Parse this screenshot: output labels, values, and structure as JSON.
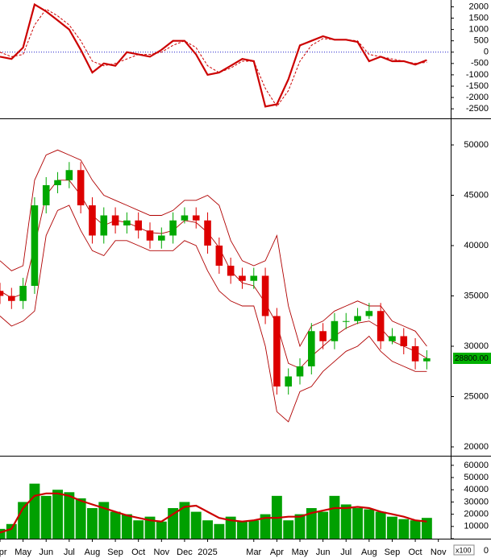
{
  "chart_data": [
    {
      "type": "line",
      "x": [
        0,
        0.5,
        1,
        1.5,
        2,
        2.5,
        3,
        3.5,
        4,
        4.5,
        5,
        5.5,
        6,
        6.5,
        7,
        7.5,
        8,
        8.5,
        9,
        9.5,
        10,
        10.5,
        11,
        11.5,
        12,
        12.5,
        13,
        13.5,
        14,
        14.5,
        15,
        15.5,
        16,
        16.5,
        17,
        17.5,
        18,
        18.5
      ],
      "xlim": [
        0,
        19.5
      ],
      "ylim": [
        -2850,
        2300
      ],
      "yticks": [
        2000,
        1500,
        1000,
        500,
        0,
        -500,
        -1000,
        -1500,
        -2000,
        -2500
      ],
      "hlines": [
        {
          "value": 0,
          "color": "#1a1acc",
          "style": "dotted"
        }
      ],
      "series": [
        {
          "color": "#cc0000",
          "style": "solid",
          "values": [
            -200,
            -300,
            200,
            2100,
            1800,
            1400,
            1000,
            100,
            -900,
            -500,
            -600,
            0,
            -100,
            -200,
            100,
            500,
            500,
            -100,
            -1000,
            -900,
            -600,
            -300,
            -400,
            -2400,
            -2300,
            -1200,
            300,
            500,
            700,
            550,
            550,
            450,
            -400,
            -200,
            -400,
            -400,
            -550,
            -350
          ]
        },
        {
          "color": "#cc0000",
          "style": "dashed",
          "values": [
            0,
            -200,
            -100,
            1200,
            1900,
            1600,
            1200,
            500,
            -400,
            -600,
            -500,
            -300,
            -100,
            -100,
            0,
            300,
            500,
            200,
            -600,
            -900,
            -700,
            -400,
            -400,
            -1600,
            -2400,
            -1700,
            -400,
            300,
            600,
            550,
            550,
            500,
            -100,
            -200,
            -300,
            -400,
            -500,
            -450
          ]
        }
      ]
    },
    {
      "type": "candlestick",
      "x": [
        0,
        0.5,
        1,
        1.5,
        2,
        2.5,
        3,
        3.5,
        4,
        4.5,
        5,
        5.5,
        6,
        6.5,
        7,
        7.5,
        8,
        8.5,
        9,
        9.5,
        10,
        10.5,
        11,
        11.5,
        12,
        12.5,
        13,
        13.5,
        14,
        14.5,
        15,
        15.5,
        16,
        16.5,
        17,
        17.5,
        18,
        18.5
      ],
      "xlim": [
        0,
        19.5
      ],
      "ylim": [
        19200,
        52400
      ],
      "yticks": [
        50000,
        45000,
        40000,
        35000,
        30000,
        25000,
        20000
      ],
      "up_color": "#00a800",
      "down_color": "#dd0000",
      "open": [
        35500,
        35000,
        34500,
        36000,
        44000,
        46000,
        46500,
        47500,
        44000,
        41000,
        43000,
        42000,
        42500,
        41500,
        40500,
        41000,
        42500,
        43000,
        42500,
        40000,
        38000,
        37000,
        36500,
        37000,
        33000,
        26000,
        27000,
        28000,
        31500,
        30500,
        32500,
        32500,
        33000,
        33500,
        30500,
        31000,
        30000,
        28500
      ],
      "high": [
        36300,
        35800,
        36800,
        44800,
        46800,
        47300,
        48300,
        48300,
        44800,
        43800,
        43800,
        43300,
        43300,
        42300,
        41800,
        43300,
        43800,
        43800,
        43300,
        40800,
        38800,
        37800,
        37800,
        37800,
        33800,
        27800,
        28800,
        32300,
        32300,
        33300,
        33300,
        33800,
        34300,
        34300,
        31800,
        31800,
        30800,
        29600
      ],
      "low": [
        34200,
        33700,
        33700,
        35200,
        43200,
        45200,
        45700,
        43200,
        40200,
        40200,
        41200,
        41200,
        40700,
        39700,
        39700,
        40200,
        42200,
        41700,
        39200,
        37200,
        36200,
        35700,
        35700,
        32200,
        25200,
        25200,
        26200,
        27200,
        29700,
        29700,
        31700,
        32200,
        32700,
        29700,
        30200,
        29200,
        27700,
        27700
      ],
      "close": [
        35000,
        34500,
        36000,
        44000,
        46000,
        46500,
        47500,
        44000,
        41000,
        43000,
        42000,
        42500,
        41500,
        40500,
        41000,
        42500,
        43000,
        42500,
        40000,
        38000,
        37000,
        36500,
        37000,
        33000,
        26000,
        27000,
        28000,
        31500,
        30500,
        32500,
        32500,
        33000,
        33500,
        30500,
        31000,
        30000,
        28500,
        28800
      ],
      "bands": [
        {
          "color": "#b00000",
          "values": [
            38500,
            37500,
            38000,
            46500,
            49000,
            49500,
            49000,
            48500,
            46500,
            45000,
            44500,
            44000,
            43500,
            43000,
            43000,
            43500,
            44500,
            44500,
            45000,
            44000,
            40500,
            38500,
            38000,
            38500,
            41000,
            34000,
            30000,
            32000,
            32500,
            33500,
            34000,
            34500,
            34000,
            34000,
            32500,
            32000,
            31500,
            30000
          ]
        },
        {
          "color": "#b00000",
          "values": [
            35500,
            34800,
            35200,
            40000,
            45000,
            46500,
            46500,
            45000,
            43000,
            42000,
            42500,
            42300,
            41800,
            41300,
            41200,
            41500,
            42500,
            42300,
            41300,
            39800,
            37500,
            36300,
            36000,
            34300,
            32200,
            28300,
            27800,
            29000,
            30000,
            31000,
            31800,
            32300,
            32500,
            31800,
            30500,
            30000,
            29500,
            28800
          ]
        },
        {
          "color": "#b00000",
          "values": [
            33000,
            32000,
            32500,
            33500,
            41000,
            43500,
            44000,
            41500,
            39500,
            39000,
            40500,
            40500,
            40000,
            39500,
            39500,
            39500,
            40500,
            40000,
            37500,
            35500,
            34500,
            34000,
            34000,
            30000,
            23500,
            22500,
            25500,
            26000,
            27500,
            28500,
            29500,
            30000,
            31000,
            29500,
            28500,
            28000,
            27500,
            27500
          ]
        }
      ],
      "last_price": {
        "value": 28800,
        "label": "28800.00",
        "color": "#00b000"
      }
    },
    {
      "type": "bar",
      "x": [
        0,
        0.5,
        1,
        1.5,
        2,
        2.5,
        3,
        3.5,
        4,
        4.5,
        5,
        5.5,
        6,
        6.5,
        7,
        7.5,
        8,
        8.5,
        9,
        9.5,
        10,
        10.5,
        11,
        11.5,
        12,
        12.5,
        13,
        13.5,
        14,
        14.5,
        15,
        15.5,
        16,
        16.5,
        17,
        17.5,
        18,
        18.5
      ],
      "xlim": [
        0,
        19.5
      ],
      "ylim": [
        0,
        66500
      ],
      "yticks": [
        60000,
        50000,
        40000,
        30000,
        20000,
        10000,
        0
      ],
      "unit": "x100",
      "color": "#00a000",
      "values": [
        8000,
        12000,
        30000,
        45000,
        35000,
        40000,
        38000,
        33000,
        25000,
        30000,
        22000,
        20000,
        15000,
        18000,
        14000,
        25000,
        30000,
        22000,
        15000,
        12000,
        18000,
        14000,
        15000,
        20000,
        35000,
        15000,
        20000,
        25000,
        22000,
        35000,
        28000,
        25000,
        24000,
        22000,
        18000,
        16000,
        15000,
        17000
      ],
      "moving_average": {
        "color": "#cc0000",
        "values": [
          5000,
          8000,
          25000,
          35000,
          37000,
          37000,
          35000,
          31000,
          28000,
          25000,
          22000,
          19000,
          17000,
          15000,
          14000,
          20000,
          26000,
          27000,
          22000,
          17000,
          15000,
          14000,
          15000,
          17000,
          17000,
          18000,
          18000,
          21000,
          23000,
          25000,
          25000,
          26000,
          25000,
          22000,
          20000,
          18000,
          15000,
          14000
        ]
      },
      "xticks": [
        {
          "value": 0,
          "label": "Apr"
        },
        {
          "value": 1,
          "label": "May"
        },
        {
          "value": 2,
          "label": "Jun"
        },
        {
          "value": 3,
          "label": "Jul"
        },
        {
          "value": 4,
          "label": "Aug"
        },
        {
          "value": 5,
          "label": "Sep"
        },
        {
          "value": 6,
          "label": "Oct"
        },
        {
          "value": 7,
          "label": "Nov"
        },
        {
          "value": 8,
          "label": "Dec"
        },
        {
          "value": 9,
          "label": "2025"
        },
        {
          "value": 11,
          "label": "Mar"
        },
        {
          "value": 12,
          "label": "Apr"
        },
        {
          "value": 13,
          "label": "May"
        },
        {
          "value": 14,
          "label": "Jun"
        },
        {
          "value": 15,
          "label": "Jul"
        },
        {
          "value": 16,
          "label": "Aug"
        },
        {
          "value": 17,
          "label": "Sep"
        },
        {
          "value": 18,
          "label": "Oct"
        },
        {
          "value": 19,
          "label": "Nov"
        }
      ]
    }
  ]
}
